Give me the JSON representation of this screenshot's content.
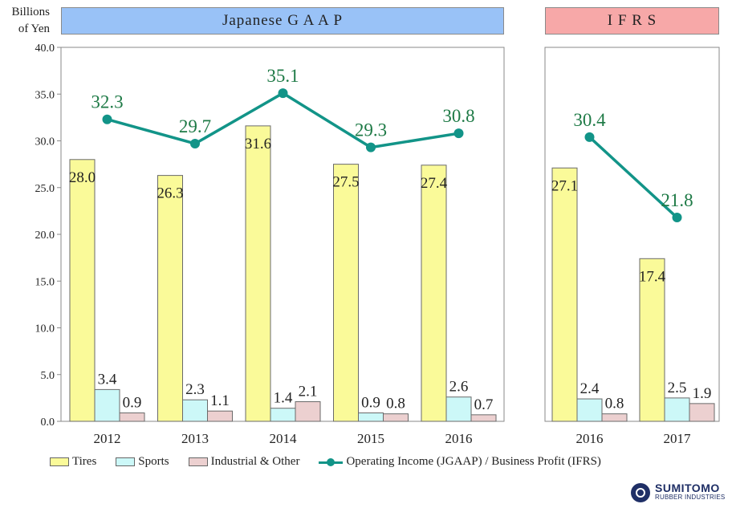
{
  "unit_label": [
    "Billions",
    "of Yen"
  ],
  "colors": {
    "tires": "#fafa99",
    "sports": "#ccf8f8",
    "industrial": "#ecd0d0",
    "line": "#129488",
    "value_label": "#1e7a46",
    "jgaap_banner": "#99c2f7",
    "ifrs_banner": "#f7a8a8"
  },
  "chart_data": [
    {
      "type": "bar",
      "title": "Japanese G A A P",
      "ylim": [
        0,
        40
      ],
      "yticks": [
        "0.0",
        "5.0",
        "10.0",
        "15.0",
        "20.0",
        "25.0",
        "30.0",
        "35.0",
        "40.0"
      ],
      "categories": [
        "2012",
        "2013",
        "2014",
        "2015",
        "2016"
      ],
      "series": [
        {
          "name": "Tires",
          "type": "bar",
          "values": [
            28.0,
            26.3,
            31.6,
            27.5,
            27.4
          ],
          "labels": [
            "28.0",
            "26.3",
            "31.6",
            "27.5",
            "27.4"
          ]
        },
        {
          "name": "Sports",
          "type": "bar",
          "values": [
            3.4,
            2.3,
            1.4,
            0.9,
            2.6
          ],
          "labels": [
            "3.4",
            "2.3",
            "1.4",
            "0.9",
            "2.6"
          ]
        },
        {
          "name": "Industrial & Other",
          "type": "bar",
          "values": [
            0.9,
            1.1,
            2.1,
            0.8,
            0.7
          ],
          "labels": [
            "0.9",
            "1.1",
            "2.1",
            "0.8",
            "0.7"
          ]
        },
        {
          "name": "Operating Income (JGAAP) / Business Profit (IFRS)",
          "type": "line",
          "values": [
            32.3,
            29.7,
            35.1,
            29.3,
            30.8
          ],
          "labels": [
            "32.3",
            "29.7",
            "35.1",
            "29.3",
            "30.8"
          ]
        }
      ]
    },
    {
      "type": "bar",
      "title": "I F R S",
      "ylim": [
        0,
        40
      ],
      "categories": [
        "2016",
        "2017"
      ],
      "series": [
        {
          "name": "Tires",
          "type": "bar",
          "values": [
            27.1,
            17.4
          ],
          "labels": [
            "27.1",
            "17.4"
          ]
        },
        {
          "name": "Sports",
          "type": "bar",
          "values": [
            2.4,
            2.5
          ],
          "labels": [
            "2.4",
            "2.5"
          ]
        },
        {
          "name": "Industrial & Other",
          "type": "bar",
          "values": [
            0.8,
            1.9
          ],
          "labels": [
            "0.8",
            "1.9"
          ]
        },
        {
          "name": "Operating Income (JGAAP) / Business Profit (IFRS)",
          "type": "line",
          "values": [
            30.4,
            21.8
          ],
          "labels": [
            "30.4",
            "21.8"
          ]
        }
      ]
    }
  ],
  "legend": [
    {
      "label": "Tires",
      "kind": "bar",
      "color_key": "tires"
    },
    {
      "label": "Sports",
      "kind": "bar",
      "color_key": "sports"
    },
    {
      "label": "Industrial & Other",
      "kind": "bar",
      "color_key": "industrial"
    },
    {
      "label": "Operating Income (JGAAP) / Business Profit (IFRS)",
      "kind": "line",
      "color_key": "line"
    }
  ],
  "logo": {
    "line1": "SUMITOMO",
    "line2": "RUBBER INDUSTRIES"
  }
}
